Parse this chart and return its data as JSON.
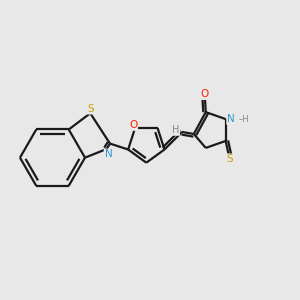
{
  "background_color": "#e8e8e8",
  "bond_color": "#1a1a1a",
  "atom_colors": {
    "S": "#c8a000",
    "N": "#3399cc",
    "O": "#ff2200",
    "H": "#888888",
    "C": "#1a1a1a"
  },
  "line_width": 1.6,
  "dbo": 0.08
}
